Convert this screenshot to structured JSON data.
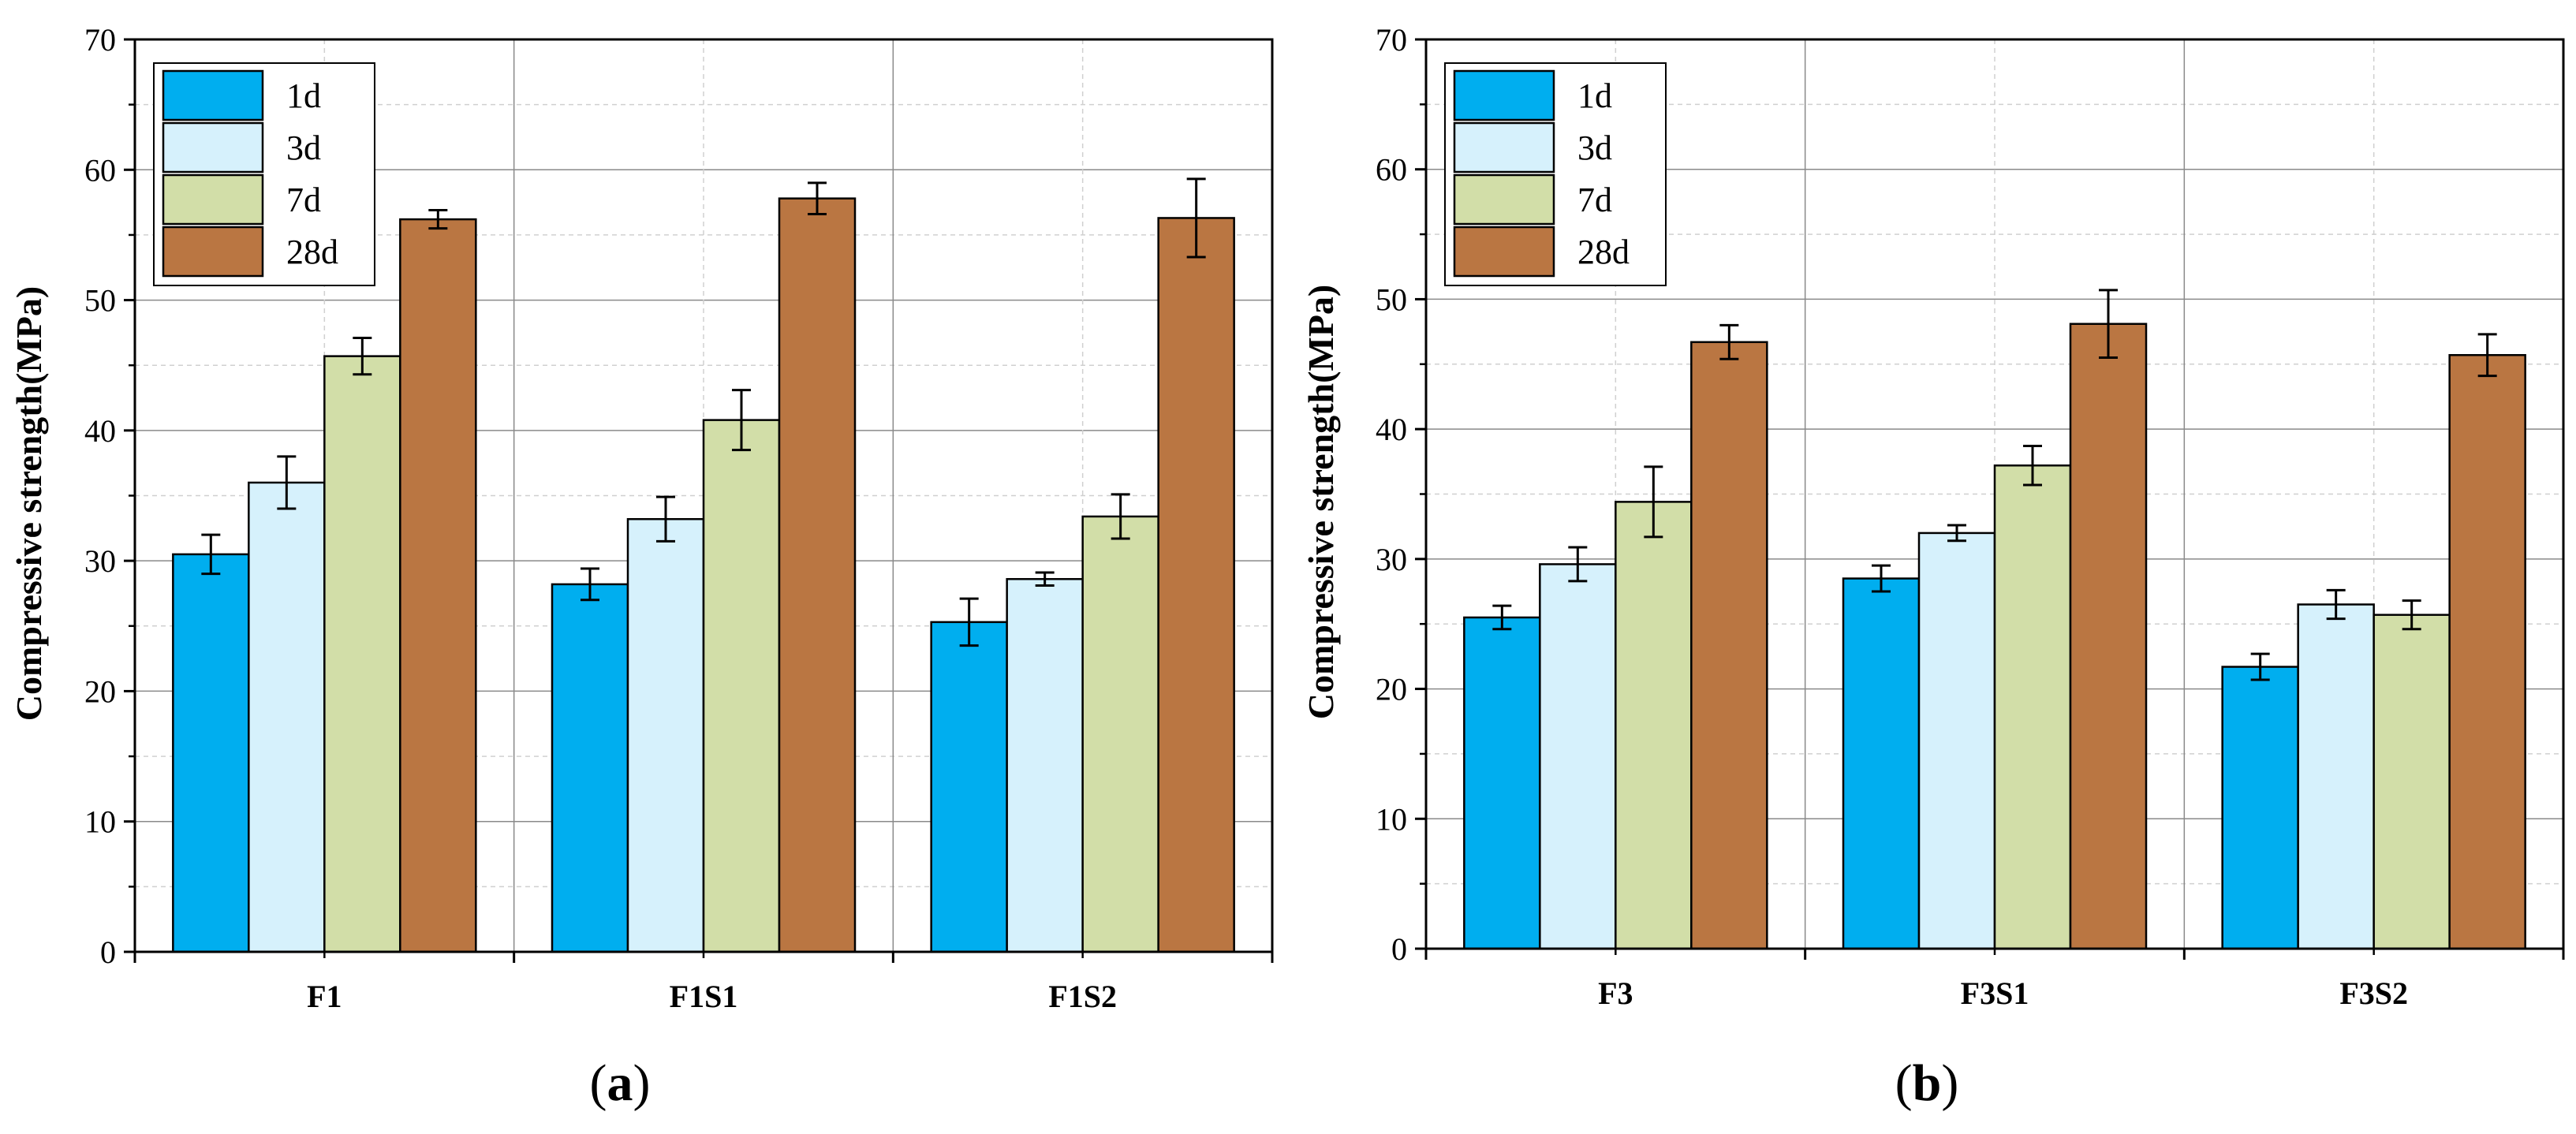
{
  "chart_data": [
    {
      "type": "bar",
      "panel_label": "a",
      "categories": [
        "F1",
        "F1S1",
        "F1S2"
      ],
      "ylabel": "Compressive strength(MPa)",
      "xlabel": "",
      "ylim": [
        0,
        70
      ],
      "yticks": [
        0,
        10,
        20,
        30,
        40,
        50,
        60,
        70
      ],
      "grid": true,
      "legend_position": "top-left",
      "series": [
        {
          "name": "1d",
          "color": "#00AEEF",
          "values": [
            30.5,
            28.2,
            25.3
          ],
          "errors": [
            1.5,
            1.2,
            1.8
          ]
        },
        {
          "name": "3d",
          "color": "#D6F1FC",
          "values": [
            36.0,
            33.2,
            28.6
          ],
          "errors": [
            2.0,
            1.7,
            0.5
          ]
        },
        {
          "name": "7d",
          "color": "#D2DEA8",
          "values": [
            45.7,
            40.8,
            33.4
          ],
          "errors": [
            1.4,
            2.3,
            1.7
          ]
        },
        {
          "name": "28d",
          "color": "#BA7642",
          "values": [
            56.2,
            57.8,
            56.3
          ],
          "errors": [
            0.7,
            1.2,
            3.0
          ]
        }
      ]
    },
    {
      "type": "bar",
      "panel_label": "b",
      "categories": [
        "F3",
        "F3S1",
        "F3S2"
      ],
      "ylabel": "Compressive strength(MPa)",
      "xlabel": "",
      "ylim": [
        0,
        70
      ],
      "yticks": [
        0,
        10,
        20,
        30,
        40,
        50,
        60,
        70
      ],
      "grid": true,
      "legend_position": "top-left",
      "series": [
        {
          "name": "1d",
          "color": "#00AEEF",
          "values": [
            25.5,
            28.5,
            21.7
          ],
          "errors": [
            0.9,
            1.0,
            1.0
          ]
        },
        {
          "name": "3d",
          "color": "#D6F1FC",
          "values": [
            29.6,
            32.0,
            26.5
          ],
          "errors": [
            1.3,
            0.6,
            1.1
          ]
        },
        {
          "name": "7d",
          "color": "#D2DEA8",
          "values": [
            34.4,
            37.2,
            25.7
          ],
          "errors": [
            2.7,
            1.5,
            1.1
          ]
        },
        {
          "name": "28d",
          "color": "#BA7642",
          "values": [
            46.7,
            48.1,
            45.7
          ],
          "errors": [
            1.3,
            2.6,
            1.6
          ]
        }
      ]
    }
  ]
}
